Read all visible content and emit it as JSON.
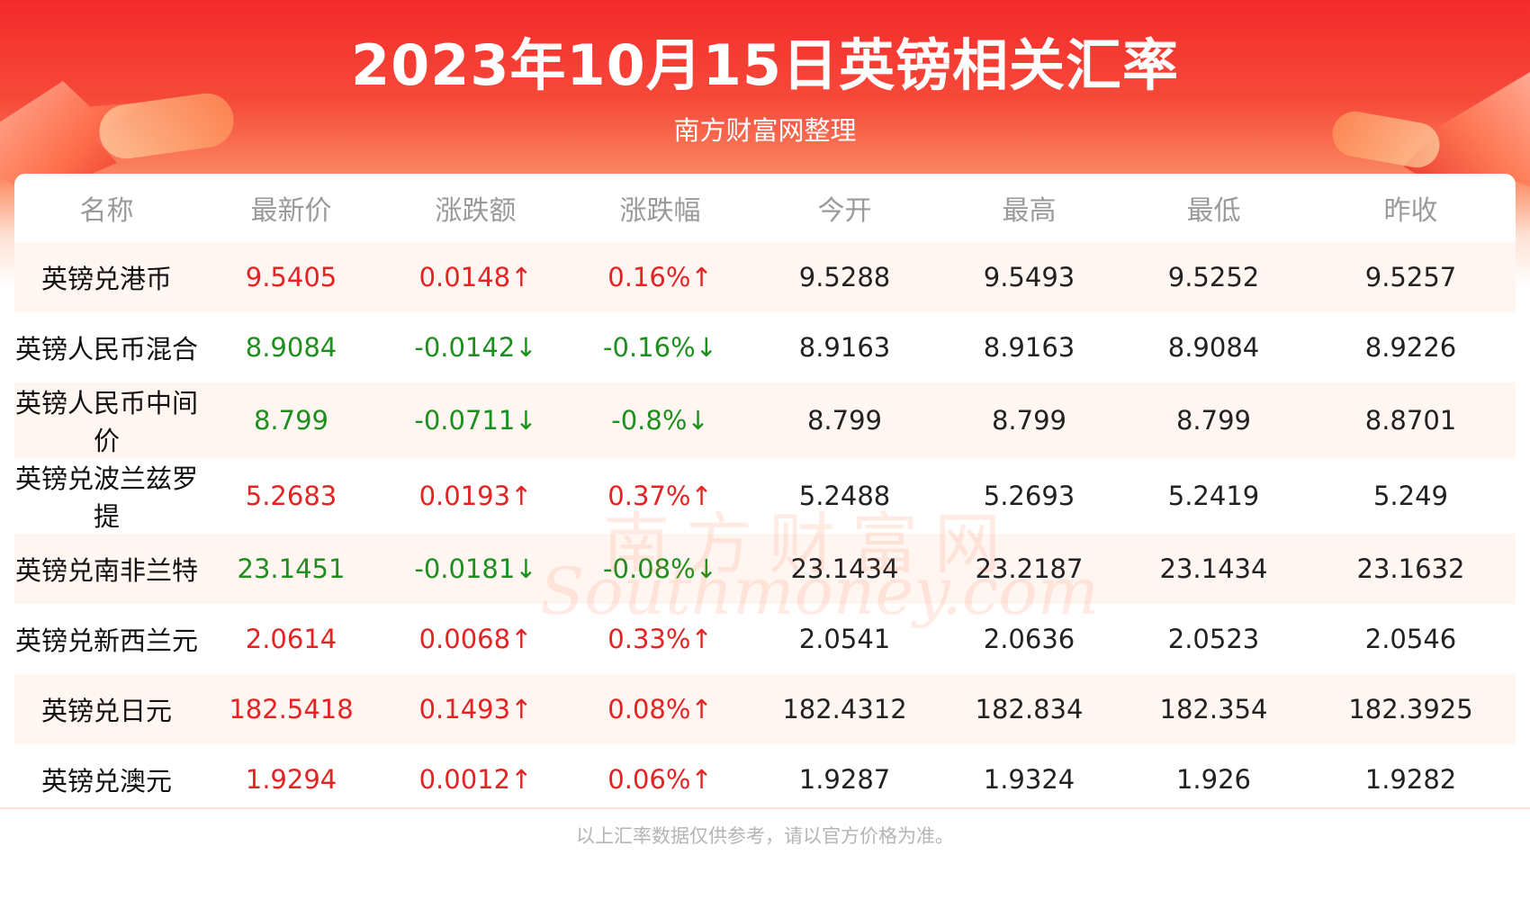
{
  "header": {
    "title": "2023年10月15日英镑相关汇率",
    "subtitle": "南方财富网整理"
  },
  "table": {
    "columns": [
      "名称",
      "最新价",
      "涨跌额",
      "涨跌幅",
      "今开",
      "最高",
      "最低",
      "昨收"
    ],
    "rows": [
      {
        "name": "英镑兑港币",
        "latest": "9.5405",
        "change": "0.0148↑",
        "change_pct": "0.16%↑",
        "open": "9.5288",
        "high": "9.5493",
        "low": "9.5252",
        "prev_close": "9.5257",
        "direction": "up"
      },
      {
        "name": "英镑人民币混合",
        "latest": "8.9084",
        "change": "-0.0142↓",
        "change_pct": "-0.16%↓",
        "open": "8.9163",
        "high": "8.9163",
        "low": "8.9084",
        "prev_close": "8.9226",
        "direction": "down"
      },
      {
        "name": "英镑人民币中间价",
        "latest": "8.799",
        "change": "-0.0711↓",
        "change_pct": "-0.8%↓",
        "open": "8.799",
        "high": "8.799",
        "low": "8.799",
        "prev_close": "8.8701",
        "direction": "down"
      },
      {
        "name": "英镑兑波兰兹罗提",
        "latest": "5.2683",
        "change": "0.0193↑",
        "change_pct": "0.37%↑",
        "open": "5.2488",
        "high": "5.2693",
        "low": "5.2419",
        "prev_close": "5.249",
        "direction": "up"
      },
      {
        "name": "英镑兑南非兰特",
        "latest": "23.1451",
        "change": "-0.0181↓",
        "change_pct": "-0.08%↓",
        "open": "23.1434",
        "high": "23.2187",
        "low": "23.1434",
        "prev_close": "23.1632",
        "direction": "down"
      },
      {
        "name": "英镑兑新西兰元",
        "latest": "2.0614",
        "change": "0.0068↑",
        "change_pct": "0.33%↑",
        "open": "2.0541",
        "high": "2.0636",
        "low": "2.0523",
        "prev_close": "2.0546",
        "direction": "up"
      },
      {
        "name": "英镑兑日元",
        "latest": "182.5418",
        "change": "0.1493↑",
        "change_pct": "0.08%↑",
        "open": "182.4312",
        "high": "182.834",
        "low": "182.354",
        "prev_close": "182.3925",
        "direction": "up"
      },
      {
        "name": "英镑兑澳元",
        "latest": "1.9294",
        "change": "0.0012↑",
        "change_pct": "0.06%↑",
        "open": "1.9287",
        "high": "1.9324",
        "low": "1.926",
        "prev_close": "1.9282",
        "direction": "up"
      }
    ]
  },
  "watermark": {
    "cn": "南方财富网",
    "en": "Southmoney.com"
  },
  "footer": {
    "note": "以上汇率数据仅供参考，请以官方价格为准。"
  },
  "colors": {
    "banner_red": "#f42a2a",
    "up": "#e42323",
    "down": "#1e8f1e",
    "row_tint": "#fff5f1"
  }
}
